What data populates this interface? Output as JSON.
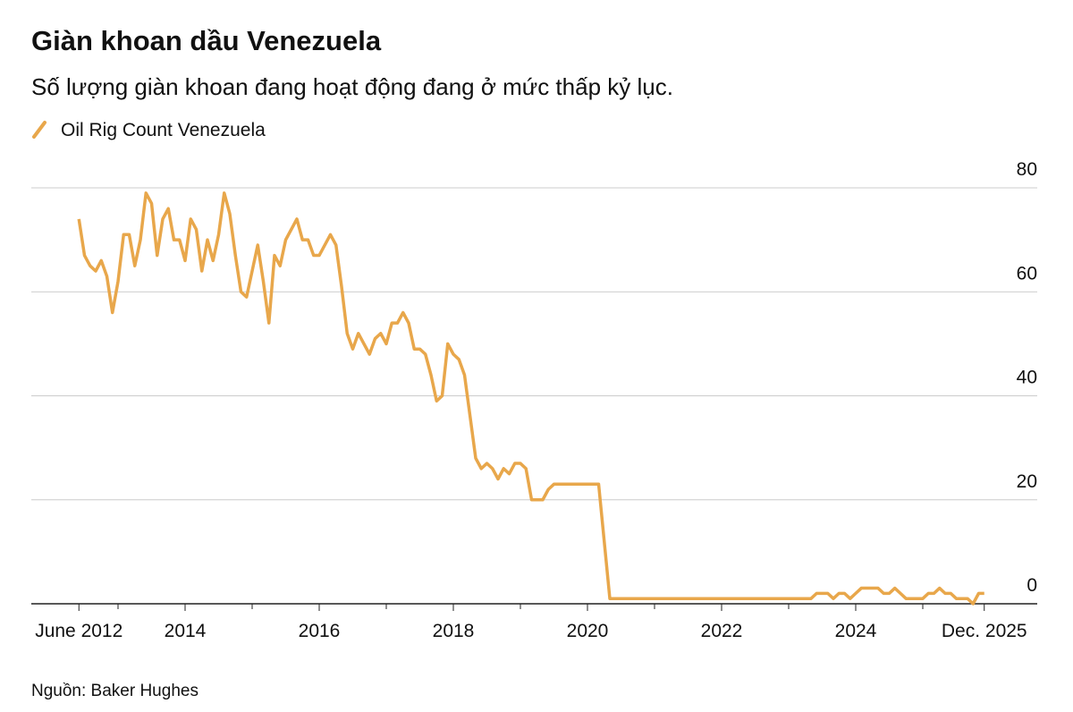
{
  "chart_data": {
    "type": "line",
    "title": "Giàn khoan dầu Venezuela",
    "subtitle": "Số lượng giàn khoan đang hoạt động đang ở mức thấp kỷ lục.",
    "source": "Nguồn: Baker Hughes",
    "ylim": [
      0,
      80
    ],
    "yticks": [
      0,
      20,
      40,
      60,
      80
    ],
    "grid": true,
    "xticks": [
      {
        "value": "2012-06",
        "label": "June 2012"
      },
      {
        "value": "2014-01",
        "label": "2014"
      },
      {
        "value": "2016-01",
        "label": "2016"
      },
      {
        "value": "2018-01",
        "label": "2018"
      },
      {
        "value": "2020-01",
        "label": "2020"
      },
      {
        "value": "2022-01",
        "label": "2022"
      },
      {
        "value": "2024-01",
        "label": "2024"
      },
      {
        "value": "2025-12",
        "label": "Dec. 2025"
      }
    ],
    "xminorticks": [
      "2013-01",
      "2015-01",
      "2017-01",
      "2019-01",
      "2021-01",
      "2023-01",
      "2025-01"
    ],
    "legend": "top-left",
    "x": [
      "2012-06",
      "2012-07",
      "2012-08",
      "2012-09",
      "2012-10",
      "2012-11",
      "2012-12",
      "2013-01",
      "2013-02",
      "2013-03",
      "2013-04",
      "2013-05",
      "2013-06",
      "2013-07",
      "2013-08",
      "2013-09",
      "2013-10",
      "2013-11",
      "2013-12",
      "2014-01",
      "2014-02",
      "2014-03",
      "2014-04",
      "2014-05",
      "2014-06",
      "2014-07",
      "2014-08",
      "2014-09",
      "2014-10",
      "2014-11",
      "2014-12",
      "2015-01",
      "2015-02",
      "2015-03",
      "2015-04",
      "2015-05",
      "2015-06",
      "2015-07",
      "2015-08",
      "2015-09",
      "2015-10",
      "2015-11",
      "2015-12",
      "2016-01",
      "2016-02",
      "2016-03",
      "2016-04",
      "2016-05",
      "2016-06",
      "2016-07",
      "2016-08",
      "2016-09",
      "2016-10",
      "2016-11",
      "2016-12",
      "2017-01",
      "2017-02",
      "2017-03",
      "2017-04",
      "2017-05",
      "2017-06",
      "2017-07",
      "2017-08",
      "2017-09",
      "2017-10",
      "2017-11",
      "2017-12",
      "2018-01",
      "2018-02",
      "2018-03",
      "2018-04",
      "2018-05",
      "2018-06",
      "2018-07",
      "2018-08",
      "2018-09",
      "2018-10",
      "2018-11",
      "2018-12",
      "2019-01",
      "2019-02",
      "2019-03",
      "2019-04",
      "2019-05",
      "2019-06",
      "2019-07",
      "2019-08",
      "2019-09",
      "2019-10",
      "2019-11",
      "2019-12",
      "2020-01",
      "2020-02",
      "2020-03",
      "2020-04",
      "2020-05",
      "2020-06",
      "2020-07",
      "2020-08",
      "2020-09",
      "2020-10",
      "2020-11",
      "2020-12",
      "2021-01",
      "2021-02",
      "2021-03",
      "2021-04",
      "2021-05",
      "2021-06",
      "2021-07",
      "2021-08",
      "2021-09",
      "2021-10",
      "2021-11",
      "2021-12",
      "2022-01",
      "2022-02",
      "2022-03",
      "2022-04",
      "2022-05",
      "2022-06",
      "2022-07",
      "2022-08",
      "2022-09",
      "2022-10",
      "2022-11",
      "2022-12",
      "2023-01",
      "2023-02",
      "2023-03",
      "2023-04",
      "2023-05",
      "2023-06",
      "2023-07",
      "2023-08",
      "2023-09",
      "2023-10",
      "2023-11",
      "2023-12",
      "2024-01",
      "2024-02",
      "2024-03",
      "2024-04",
      "2024-05",
      "2024-06",
      "2024-07",
      "2024-08",
      "2024-09",
      "2024-10",
      "2024-11",
      "2024-12",
      "2025-01",
      "2025-02",
      "2025-03",
      "2025-04",
      "2025-05",
      "2025-06",
      "2025-07",
      "2025-08",
      "2025-09",
      "2025-10",
      "2025-11",
      "2025-12"
    ],
    "series": [
      {
        "name": "Oil Rig Count Venezuela",
        "color": "#e8a74b",
        "values": [
          74,
          67,
          65,
          64,
          66,
          63,
          56,
          62,
          71,
          71,
          65,
          70,
          79,
          77,
          67,
          74,
          76,
          70,
          70,
          66,
          74,
          72,
          64,
          70,
          66,
          71,
          79,
          75,
          67,
          60,
          59,
          64,
          69,
          62,
          54,
          67,
          65,
          70,
          72,
          74,
          70,
          70,
          67,
          67,
          69,
          71,
          69,
          61,
          52,
          49,
          52,
          50,
          48,
          51,
          52,
          50,
          54,
          54,
          56,
          54,
          49,
          49,
          48,
          44,
          39,
          40,
          50,
          48,
          47,
          44,
          36,
          28,
          26,
          27,
          26,
          24,
          26,
          25,
          27,
          27,
          26,
          20,
          20,
          20,
          22,
          23,
          23,
          23,
          23,
          23,
          23,
          23,
          23,
          23,
          12,
          1,
          1,
          1,
          1,
          1,
          1,
          1,
          1,
          1,
          1,
          1,
          1,
          1,
          1,
          1,
          1,
          1,
          1,
          1,
          1,
          1,
          1,
          1,
          1,
          1,
          1,
          1,
          1,
          1,
          1,
          1,
          1,
          1,
          1,
          1,
          1,
          1,
          2,
          2,
          2,
          1,
          2,
          2,
          1,
          2,
          3,
          3,
          3,
          3,
          2,
          2,
          3,
          2,
          1,
          1,
          1,
          1,
          2,
          2,
          3,
          2,
          2,
          1,
          1,
          1,
          0,
          2,
          2
        ]
      }
    ]
  }
}
